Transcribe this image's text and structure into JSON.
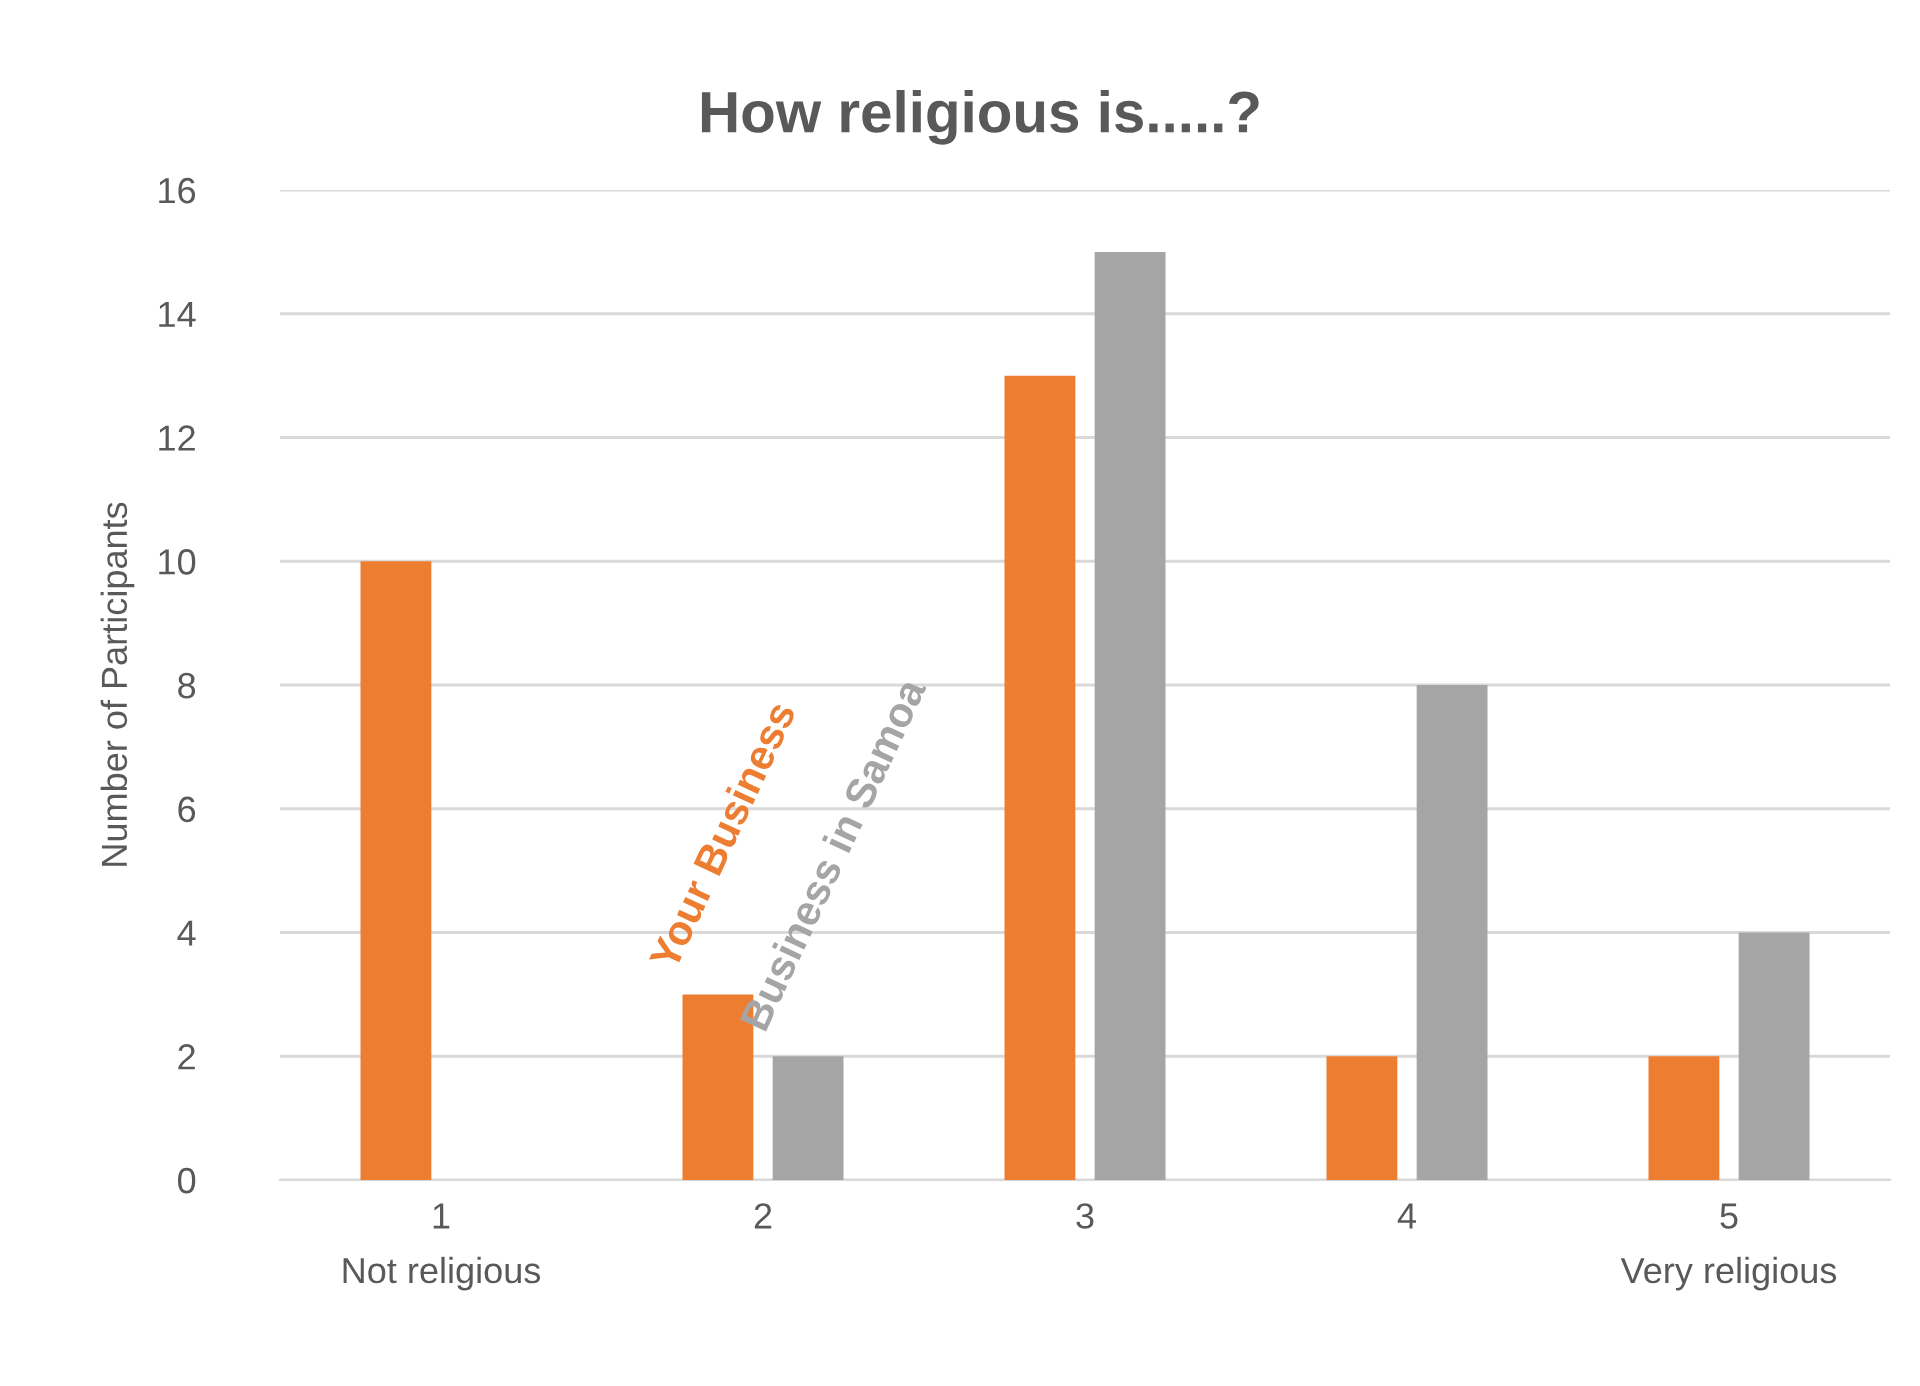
{
  "chart_data": {
    "type": "bar",
    "title": "How religious is.....?",
    "ylabel": "Number of Participants",
    "categories": [
      "1\nNot religious",
      "2",
      "3",
      "4",
      "5\nVery religious"
    ],
    "series": [
      {
        "name": "Your Business",
        "color": "#ed7d31",
        "values": [
          10,
          3,
          13,
          2,
          2
        ]
      },
      {
        "name": "Business in Samoa",
        "color": "#a5a5a5",
        "values": [
          0,
          2,
          15,
          8,
          4
        ]
      }
    ],
    "ylim": [
      0,
      16
    ],
    "yticks": [
      0,
      2,
      4,
      6,
      8,
      10,
      12,
      14,
      16
    ],
    "grid": "y",
    "legend": false
  }
}
